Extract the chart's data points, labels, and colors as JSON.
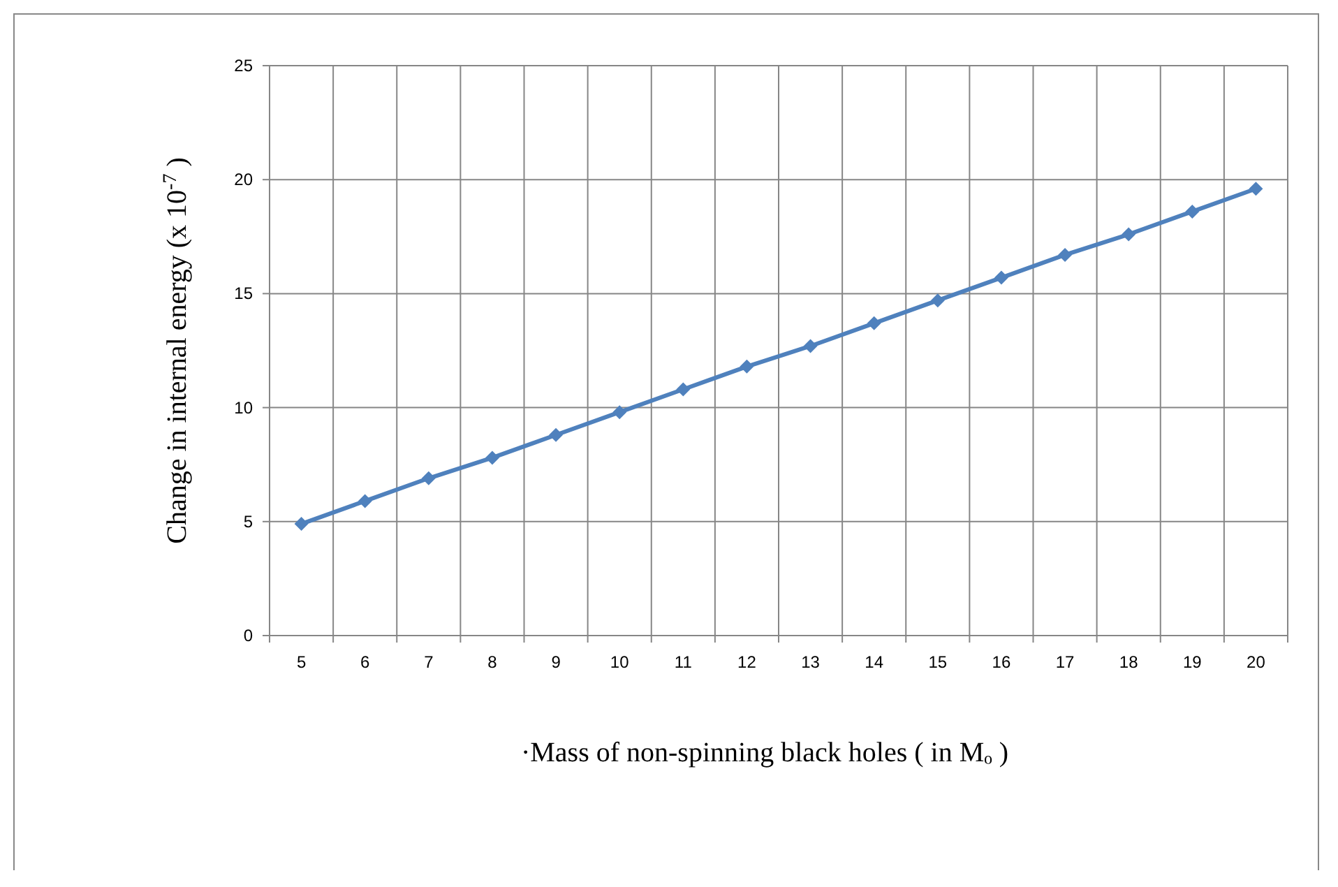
{
  "chart_data": {
    "type": "line",
    "categories": [
      "5",
      "6",
      "7",
      "8",
      "9",
      "10",
      "11",
      "12",
      "13",
      "14",
      "15",
      "16",
      "17",
      "18",
      "19",
      "20"
    ],
    "series": [
      {
        "color": "#4f81bd",
        "values": [
          4.9,
          5.9,
          6.9,
          7.8,
          8.8,
          9.8,
          10.8,
          11.8,
          12.7,
          13.7,
          14.7,
          15.7,
          16.7,
          17.6,
          18.6,
          19.6
        ]
      }
    ],
    "ylim": [
      0,
      25
    ],
    "yticks": [
      0,
      5,
      10,
      15,
      20,
      25
    ],
    "grid": true,
    "marker": "diamond",
    "line_style": "solid",
    "xlabel": "·Mass of non-spinning black holes ( in Mₒ )",
    "ylabel": "Change in internal energy (x 10$^{-7}$ )"
  }
}
